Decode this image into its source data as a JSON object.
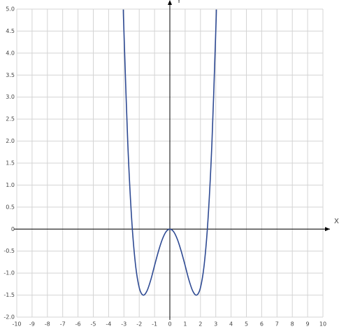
{
  "chart_data": {
    "type": "line",
    "x_label": "X",
    "y_label": "Y",
    "x": [
      -3.04,
      -3,
      -2.75,
      -2.5,
      -2.25,
      -2,
      -1.75,
      -1.5,
      -1.25,
      -1,
      -0.75,
      -0.5,
      -0.25,
      0,
      0.25,
      0.5,
      0.75,
      1,
      1.25,
      1.5,
      1.75,
      2,
      2.25,
      2.5,
      2.75,
      3,
      3.04
    ],
    "values": [
      4.99,
      4.5,
      1.97,
      0.26,
      -0.79,
      -1.33,
      -1.5,
      -1.41,
      -1.16,
      -0.83,
      -0.51,
      -0.24,
      -0.06,
      0,
      -0.06,
      -0.24,
      -0.51,
      -0.83,
      -1.16,
      -1.41,
      -1.5,
      -1.33,
      -0.79,
      0.26,
      1.97,
      4.5,
      4.99
    ],
    "color": "#2e4a93",
    "xlim": [
      -10,
      10
    ],
    "ylim": [
      -2,
      5
    ],
    "xticks": [
      -10,
      -9,
      -8,
      -7,
      -6,
      -5,
      -4,
      -3,
      -2,
      -1,
      0,
      1,
      2,
      3,
      4,
      5,
      6,
      7,
      8,
      9,
      10
    ],
    "yticks": [
      {
        "value": -2,
        "label": "-2.0"
      },
      -1.5,
      {
        "value": -1,
        "label": "-1.0"
      },
      -0.5,
      0,
      0.5,
      {
        "value": 1,
        "label": "1.0"
      },
      1.5,
      {
        "value": 2,
        "label": "2.0"
      },
      2.5,
      {
        "value": 3,
        "label": "3.0"
      },
      3.5,
      {
        "value": 4,
        "label": "4.0"
      },
      4.5,
      {
        "value": 5,
        "label": "5.0"
      }
    ],
    "grid": true
  }
}
